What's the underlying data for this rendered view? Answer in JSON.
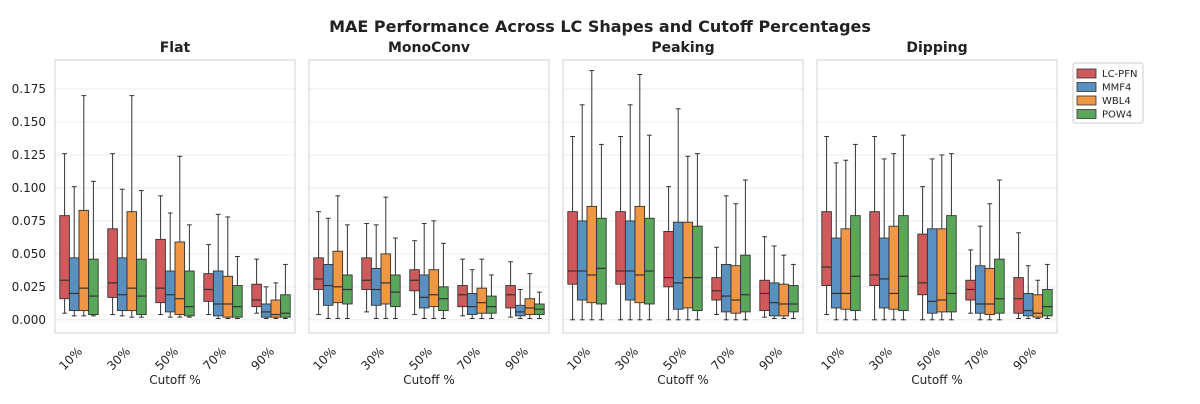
{
  "chart_data": {
    "type": "box",
    "title": "MAE Performance Across LC Shapes and Cutoff Percentages",
    "xlabel": "Cutoff %",
    "ylabel": "",
    "ylim": [
      -0.01,
      0.197
    ],
    "yticks": [
      "0.000",
      "0.025",
      "0.050",
      "0.075",
      "0.100",
      "0.125",
      "0.150",
      "0.175"
    ],
    "ytick_values": [
      0,
      0.025,
      0.05,
      0.075,
      0.1,
      0.125,
      0.15,
      0.175
    ],
    "grid": true,
    "legend_position": "top-right-outside",
    "colors": {
      "LC-PFN": "#d0595c",
      "MMF4": "#5990c0",
      "WBL4": "#ef9745",
      "POW4": "#5aa65a"
    },
    "categories": [
      "10%",
      "30%",
      "50%",
      "70%",
      "90%"
    ],
    "series_names": [
      "LC-PFN",
      "MMF4",
      "WBL4",
      "POW4"
    ],
    "panels": [
      {
        "title": "Flat",
        "boxes": [
          [
            [
              0.005,
              0.016,
              0.03,
              0.079,
              0.126
            ],
            [
              0.003,
              0.007,
              0.02,
              0.047,
              0.101
            ],
            [
              0.003,
              0.007,
              0.024,
              0.083,
              0.17
            ],
            [
              0.003,
              0.004,
              0.018,
              0.046,
              0.105
            ]
          ],
          [
            [
              0.004,
              0.017,
              0.028,
              0.069,
              0.126
            ],
            [
              0.003,
              0.007,
              0.019,
              0.047,
              0.099
            ],
            [
              0.002,
              0.007,
              0.024,
              0.082,
              0.17
            ],
            [
              0.002,
              0.004,
              0.018,
              0.046,
              0.098
            ]
          ],
          [
            [
              0.004,
              0.013,
              0.024,
              0.061,
              0.094
            ],
            [
              0.002,
              0.006,
              0.019,
              0.037,
              0.081
            ],
            [
              0.002,
              0.004,
              0.016,
              0.059,
              0.124
            ],
            [
              0.002,
              0.003,
              0.01,
              0.037,
              0.072
            ]
          ],
          [
            [
              0.004,
              0.014,
              0.023,
              0.035,
              0.057
            ],
            [
              0.001,
              0.003,
              0.012,
              0.037,
              0.08
            ],
            [
              0.001,
              0.002,
              0.012,
              0.033,
              0.078
            ],
            [
              0.001,
              0.002,
              0.01,
              0.026,
              0.048
            ]
          ],
          [
            [
              0.005,
              0.01,
              0.015,
              0.027,
              0.046
            ],
            [
              0.001,
              0.002,
              0.006,
              0.012,
              0.025
            ],
            [
              0.001,
              0.002,
              0.004,
              0.015,
              0.028
            ],
            [
              0.001,
              0.002,
              0.005,
              0.019,
              0.042
            ]
          ]
        ]
      },
      {
        "title": "MonoConv",
        "boxes": [
          [
            [
              0.004,
              0.023,
              0.031,
              0.047,
              0.082
            ],
            [
              0.001,
              0.011,
              0.026,
              0.042,
              0.077
            ],
            [
              0.001,
              0.013,
              0.025,
              0.052,
              0.094
            ],
            [
              0.001,
              0.012,
              0.023,
              0.034,
              0.072
            ]
          ],
          [
            [
              0.006,
              0.023,
              0.03,
              0.047,
              0.073
            ],
            [
              0.001,
              0.011,
              0.023,
              0.039,
              0.072
            ],
            [
              0.001,
              0.012,
              0.028,
              0.05,
              0.093
            ],
            [
              0.001,
              0.01,
              0.021,
              0.034,
              0.062
            ]
          ],
          [
            [
              0.004,
              0.022,
              0.03,
              0.038,
              0.06
            ],
            [
              0.001,
              0.009,
              0.017,
              0.034,
              0.073
            ],
            [
              0.001,
              0.01,
              0.019,
              0.038,
              0.075
            ],
            [
              0.001,
              0.007,
              0.016,
              0.025,
              0.058
            ]
          ],
          [
            [
              0.003,
              0.01,
              0.019,
              0.026,
              0.046
            ],
            [
              0.001,
              0.004,
              0.01,
              0.02,
              0.038
            ],
            [
              0.001,
              0.005,
              0.013,
              0.024,
              0.046
            ],
            [
              0.001,
              0.005,
              0.01,
              0.018,
              0.034
            ]
          ],
          [
            [
              0.002,
              0.009,
              0.019,
              0.026,
              0.044
            ],
            [
              0.001,
              0.003,
              0.006,
              0.011,
              0.023
            ],
            [
              0.001,
              0.004,
              0.009,
              0.016,
              0.035
            ],
            [
              0.001,
              0.004,
              0.008,
              0.012,
              0.021
            ]
          ]
        ]
      },
      {
        "title": "Peaking",
        "boxes": [
          [
            [
              0.0,
              0.027,
              0.037,
              0.082,
              0.139
            ],
            [
              0.0,
              0.015,
              0.037,
              0.075,
              0.163
            ],
            [
              0.0,
              0.013,
              0.034,
              0.086,
              0.189
            ],
            [
              0.0,
              0.012,
              0.039,
              0.077,
              0.133
            ]
          ],
          [
            [
              0.0,
              0.027,
              0.037,
              0.082,
              0.139
            ],
            [
              0.0,
              0.015,
              0.037,
              0.075,
              0.163
            ],
            [
              0.0,
              0.013,
              0.034,
              0.086,
              0.186
            ],
            [
              0.0,
              0.012,
              0.037,
              0.077,
              0.14
            ]
          ],
          [
            [
              0.0,
              0.025,
              0.032,
              0.067,
              0.101
            ],
            [
              0.0,
              0.008,
              0.028,
              0.074,
              0.16
            ],
            [
              0.0,
              0.009,
              0.032,
              0.074,
              0.124
            ],
            [
              0.0,
              0.007,
              0.032,
              0.071,
              0.126
            ]
          ],
          [
            [
              0.004,
              0.015,
              0.022,
              0.032,
              0.055
            ],
            [
              0.0,
              0.006,
              0.018,
              0.042,
              0.094
            ],
            [
              0.0,
              0.005,
              0.015,
              0.041,
              0.088
            ],
            [
              0.0,
              0.006,
              0.019,
              0.049,
              0.106
            ]
          ],
          [
            [
              0.002,
              0.007,
              0.02,
              0.03,
              0.063
            ],
            [
              0.001,
              0.003,
              0.013,
              0.028,
              0.056
            ],
            [
              0.001,
              0.003,
              0.012,
              0.027,
              0.049
            ],
            [
              0.001,
              0.006,
              0.012,
              0.026,
              0.042
            ]
          ]
        ]
      },
      {
        "title": "Dipping",
        "boxes": [
          [
            [
              0.004,
              0.026,
              0.04,
              0.082,
              0.139
            ],
            [
              0.0,
              0.009,
              0.02,
              0.062,
              0.119
            ],
            [
              0.0,
              0.008,
              0.02,
              0.069,
              0.121
            ],
            [
              0.0,
              0.007,
              0.033,
              0.079,
              0.133
            ]
          ],
          [
            [
              0.0,
              0.026,
              0.034,
              0.082,
              0.139
            ],
            [
              0.0,
              0.009,
              0.031,
              0.062,
              0.122
            ],
            [
              0.0,
              0.008,
              0.02,
              0.071,
              0.126
            ],
            [
              0.0,
              0.007,
              0.033,
              0.079,
              0.14
            ]
          ],
          [
            [
              0.0,
              0.019,
              0.028,
              0.065,
              0.101
            ],
            [
              0.0,
              0.005,
              0.014,
              0.069,
              0.122
            ],
            [
              0.0,
              0.006,
              0.015,
              0.069,
              0.125
            ],
            [
              0.0,
              0.006,
              0.02,
              0.079,
              0.126
            ]
          ],
          [
            [
              0.005,
              0.015,
              0.023,
              0.03,
              0.053
            ],
            [
              0.0,
              0.005,
              0.012,
              0.041,
              0.071
            ],
            [
              0.0,
              0.004,
              0.012,
              0.039,
              0.088
            ],
            [
              0.0,
              0.005,
              0.016,
              0.046,
              0.106
            ]
          ],
          [
            [
              0.001,
              0.005,
              0.016,
              0.032,
              0.066
            ],
            [
              0.001,
              0.003,
              0.007,
              0.02,
              0.041
            ],
            [
              0.001,
              0.002,
              0.005,
              0.019,
              0.03
            ],
            [
              0.001,
              0.003,
              0.01,
              0.023,
              0.042
            ]
          ]
        ]
      }
    ]
  }
}
